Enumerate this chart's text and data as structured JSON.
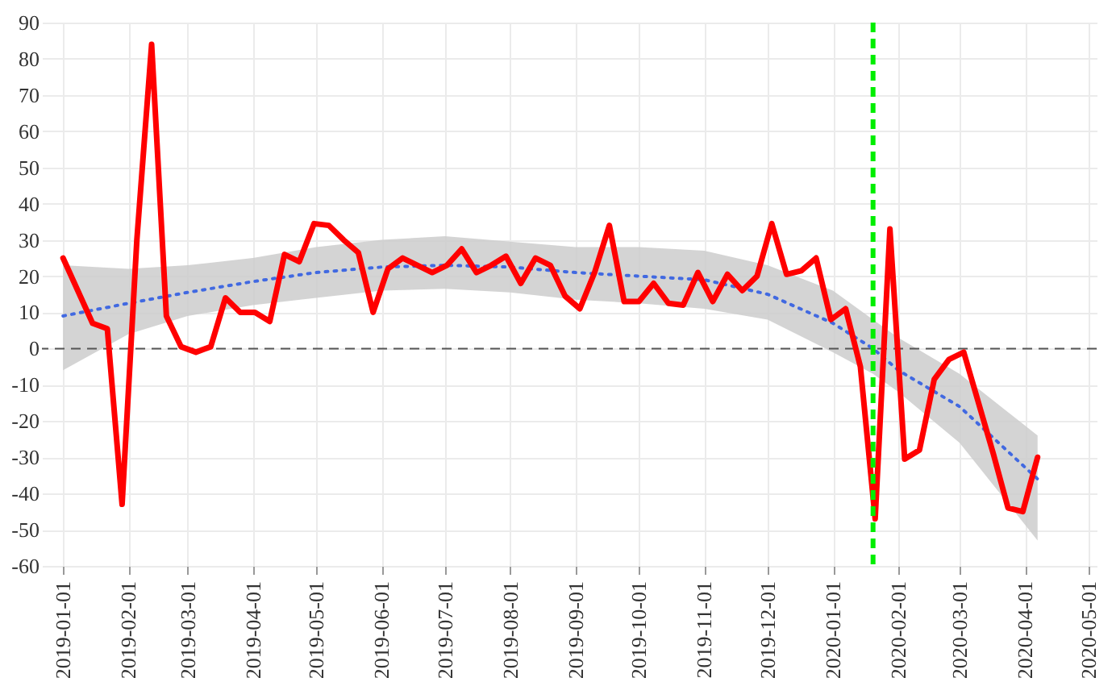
{
  "chart_data": {
    "type": "line",
    "xlim": [
      "2018-12-22",
      "2020-05-05"
    ],
    "xticks": [
      {
        "value": "2019-01-01",
        "label": "2019-01-01"
      },
      {
        "value": "2019-02-01",
        "label": "2019-02-01"
      },
      {
        "value": "2019-03-01",
        "label": "2019-03-01"
      },
      {
        "value": "2019-04-01",
        "label": "2019-04-01"
      },
      {
        "value": "2019-05-01",
        "label": "2019-05-01"
      },
      {
        "value": "2019-06-01",
        "label": "2019-06-01"
      },
      {
        "value": "2019-07-01",
        "label": "2019-07-01"
      },
      {
        "value": "2019-08-01",
        "label": "2019-08-01"
      },
      {
        "value": "2019-09-01",
        "label": "2019-09-01"
      },
      {
        "value": "2019-10-01",
        "label": "2019-10-01"
      },
      {
        "value": "2019-11-01",
        "label": "2019-11-01"
      },
      {
        "value": "2019-12-01",
        "label": "2019-12-01"
      },
      {
        "value": "2020-01-01",
        "label": "2020-01-01"
      },
      {
        "value": "2020-02-01",
        "label": "2020-02-01"
      },
      {
        "value": "2020-03-01",
        "label": "2020-03-01"
      },
      {
        "value": "2020-04-01",
        "label": "2020-04-01"
      },
      {
        "value": "2020-05-01",
        "label": "2020-05-01"
      }
    ],
    "ylim": [
      -60,
      90
    ],
    "yticks": [
      -60,
      -50,
      -40,
      -30,
      -20,
      -10,
      0,
      10,
      20,
      30,
      40,
      50,
      60,
      70,
      80,
      90
    ],
    "grid": true,
    "series": [
      {
        "color": "#4169e1",
        "line_style": "dotted",
        "x": [
          "2019-01-01",
          "2019-02-01",
          "2019-03-01",
          "2019-04-01",
          "2019-05-01",
          "2019-06-01",
          "2019-07-01",
          "2019-08-01",
          "2019-09-01",
          "2019-10-01",
          "2019-11-01",
          "2019-12-01",
          "2020-01-01",
          "2020-01-20",
          "2020-02-01",
          "2020-03-01",
          "2020-04-07"
        ],
        "values": [
          9,
          12.5,
          15.5,
          18.5,
          21,
          22.5,
          23,
          22.5,
          21,
          20,
          19,
          15,
          7,
          0,
          -6,
          -16,
          -36
        ],
        "lower": [
          -6,
          4,
          9,
          12,
          14,
          16,
          16.5,
          15.5,
          13.5,
          12.5,
          11,
          8,
          -1,
          -7,
          -12,
          -26,
          -53
        ],
        "upper": [
          23,
          22,
          23,
          25,
          28,
          30,
          31,
          29.5,
          28,
          28,
          27,
          23,
          16,
          8,
          3,
          -7,
          -24
        ]
      },
      {
        "color": "#ff0000",
        "line_style": "solid",
        "x": [
          "2019-01-01",
          "2019-01-08",
          "2019-01-15",
          "2019-01-22",
          "2019-01-29",
          "2019-02-05",
          "2019-02-12",
          "2019-02-19",
          "2019-02-26",
          "2019-03-05",
          "2019-03-12",
          "2019-03-19",
          "2019-03-26",
          "2019-04-02",
          "2019-04-09",
          "2019-04-16",
          "2019-04-23",
          "2019-04-30",
          "2019-05-07",
          "2019-05-14",
          "2019-05-21",
          "2019-05-28",
          "2019-06-04",
          "2019-06-11",
          "2019-06-18",
          "2019-06-25",
          "2019-07-02",
          "2019-07-09",
          "2019-07-16",
          "2019-07-23",
          "2019-07-30",
          "2019-08-06",
          "2019-08-13",
          "2019-08-20",
          "2019-08-27",
          "2019-09-03",
          "2019-09-10",
          "2019-09-17",
          "2019-09-24",
          "2019-10-01",
          "2019-10-08",
          "2019-10-15",
          "2019-10-22",
          "2019-10-29",
          "2019-11-05",
          "2019-11-12",
          "2019-11-19",
          "2019-11-26",
          "2019-12-03",
          "2019-12-10",
          "2019-12-17",
          "2019-12-24",
          "2019-12-31",
          "2020-01-07",
          "2020-01-14",
          "2020-01-21",
          "2020-01-28",
          "2020-02-04",
          "2020-02-11",
          "2020-02-18",
          "2020-02-25",
          "2020-03-03",
          "2020-03-10",
          "2020-03-17",
          "2020-03-24",
          "2020-03-31",
          "2020-04-07"
        ],
        "values": [
          25,
          16,
          7,
          5.5,
          -43,
          30,
          84,
          9,
          0.5,
          -1,
          0.5,
          14,
          10,
          10,
          7.5,
          26,
          24,
          34.5,
          34,
          30,
          26.5,
          10,
          22,
          25,
          23,
          21,
          23,
          27.5,
          21,
          23,
          25.5,
          18,
          25,
          23,
          14.5,
          11,
          21,
          34,
          13,
          13,
          18,
          12.5,
          12,
          21,
          13,
          20.5,
          16,
          20,
          34.5,
          20.5,
          21.5,
          25,
          8,
          11,
          -5,
          -47,
          33,
          -30.5,
          -28,
          -8.5,
          -3,
          -1,
          -15,
          -29,
          -44,
          -45,
          -30
        ]
      }
    ],
    "ref_lines": [
      {
        "axis": "y",
        "value": 0,
        "color": "#555555",
        "line_style": "dashed"
      },
      {
        "axis": "x",
        "value": "2020-01-20",
        "color": "#00ee00",
        "line_style": "dashed"
      }
    ]
  }
}
